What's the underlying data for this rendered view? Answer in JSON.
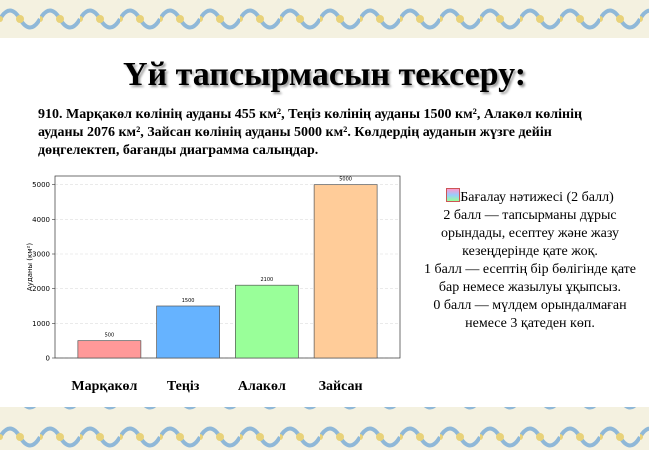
{
  "title": "Үй тапсырмасын тексеру:",
  "task": "910. Марқакөл көлінің ауданы 455 км², Теңіз көлінің ауданы 1500 км², Алакөл көлінің ауданы 2076 км², Зайсан көлінің ауданы 5000 км². Көлдердің ауданын жүзге дейін дөңгелектеп, бағанды диаграмма салыңдар.",
  "chart_data": {
    "type": "bar",
    "y_label": "Ауданы (км²)",
    "categories": [
      "Марқакөл",
      "Теңіз",
      "Алакөл",
      "Зайсан"
    ],
    "values": [
      500,
      1500,
      2100,
      5000
    ],
    "colors": [
      "#ff9999",
      "#66b3ff",
      "#99ff99",
      "#ffcc99"
    ],
    "ylim": [
      0,
      5250
    ],
    "yticks": [
      0,
      1000,
      2000,
      3000,
      4000,
      5000
    ],
    "grid": true
  },
  "assessment": {
    "heading": "Бағалау нәтижесі (2 балл)",
    "items": [
      "2 балл — тапсырманы дұрыс орындады, есептеу және жазу кезеңдерінде қате жоқ.",
      "1 балл — есептің бір бөлігінде қате бар немесе жазылуы ұқыпсыз.",
      "0 балл — мүлдем орындалмаған немесе 3 қатеден көп."
    ]
  }
}
